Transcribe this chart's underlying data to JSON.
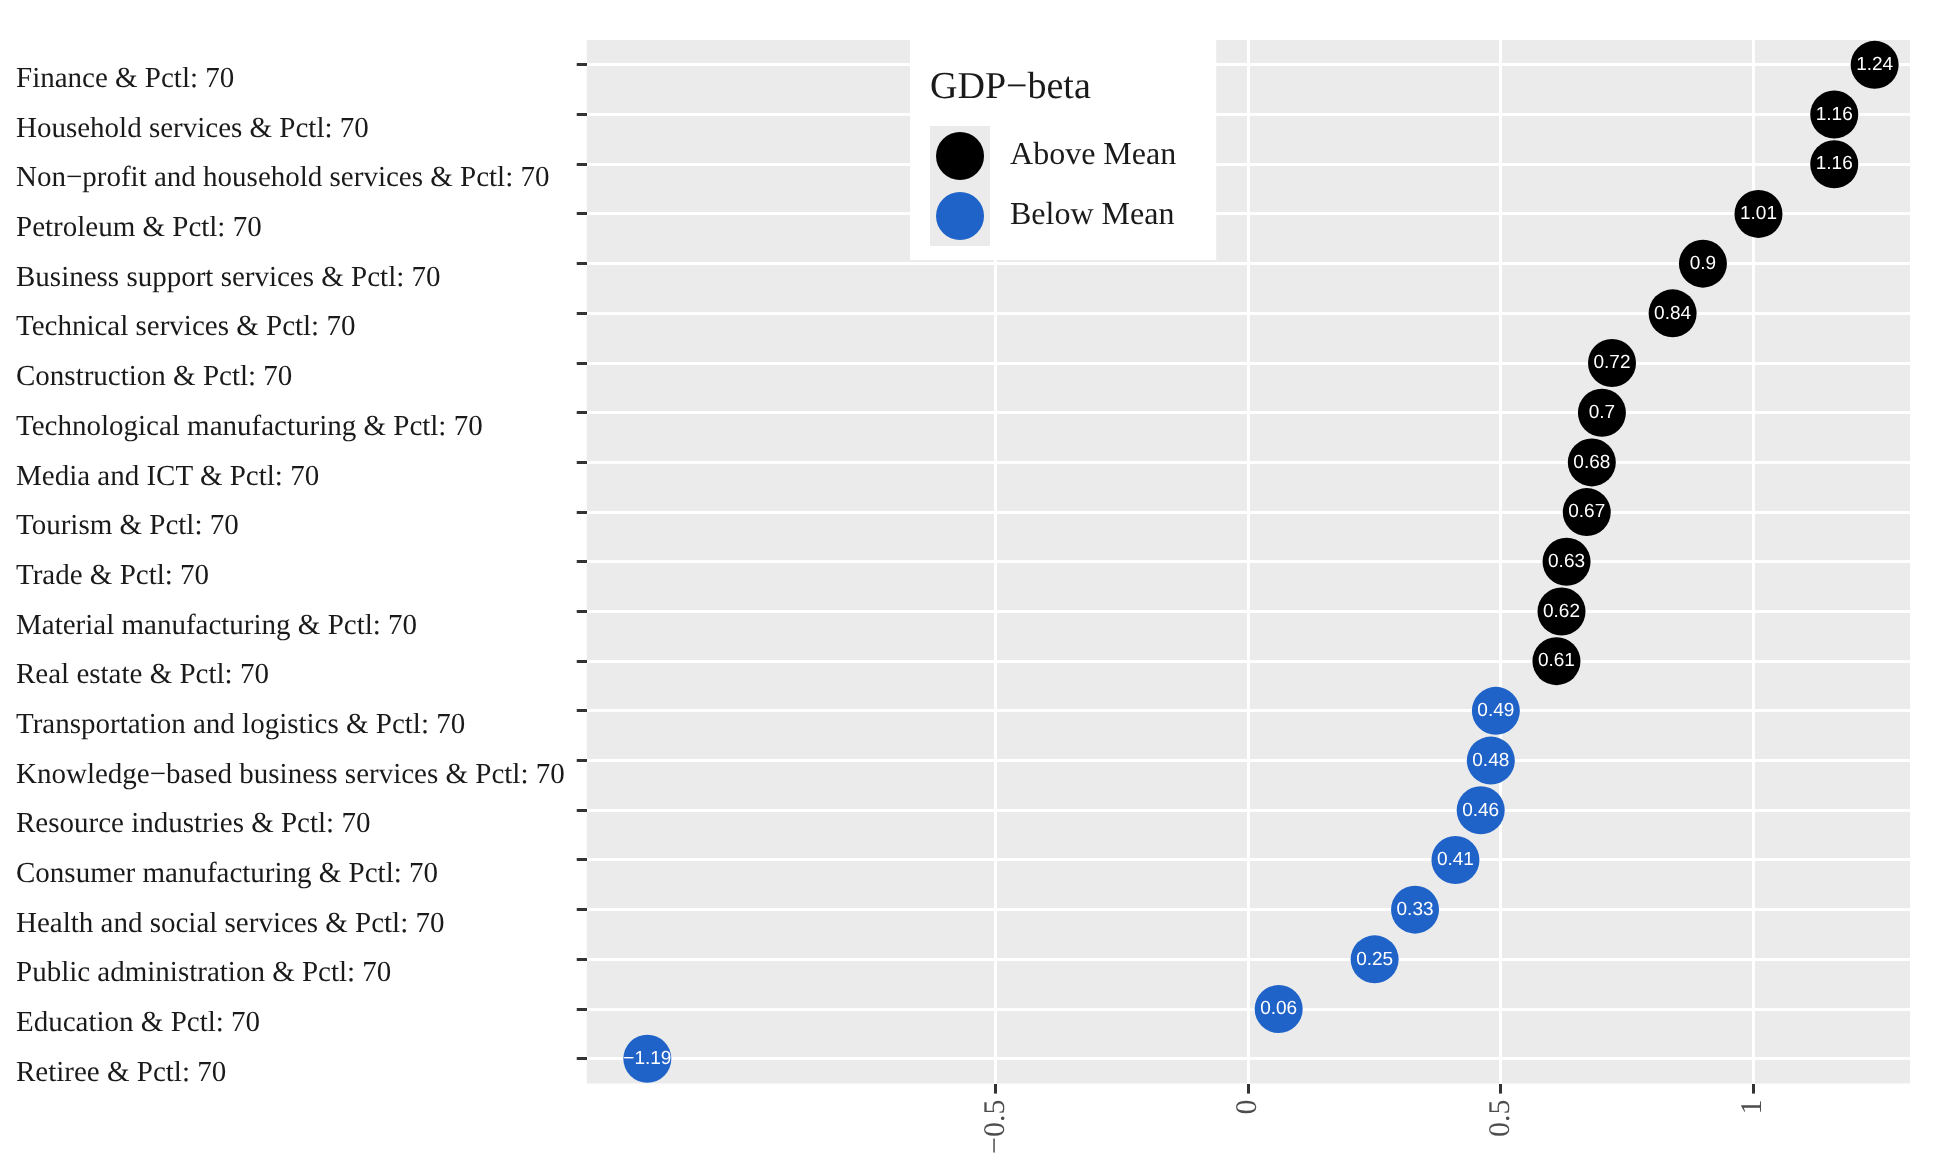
{
  "chart_data": {
    "type": "scatter",
    "legend_title": "GDP−beta",
    "categories": [
      "Finance & Pctl: 70",
      "Household services & Pctl: 70",
      "Non−profit and household services & Pctl: 70",
      "Petroleum & Pctl: 70",
      "Business support services & Pctl: 70",
      "Technical services & Pctl: 70",
      "Construction & Pctl: 70",
      "Technological manufacturing & Pctl: 70",
      "Media and ICT & Pctl: 70",
      "Tourism & Pctl: 70",
      "Trade & Pctl: 70",
      "Material manufacturing & Pctl: 70",
      "Real estate & Pctl: 70",
      "Transportation and logistics & Pctl: 70",
      "Knowledge−based business services & Pctl: 70",
      "Resource industries & Pctl: 70",
      "Consumer manufacturing & Pctl: 70",
      "Health and social services & Pctl: 70",
      "Public administration & Pctl: 70",
      "Education & Pctl: 70",
      "Retiree & Pctl: 70"
    ],
    "series": [
      {
        "name": "Above Mean",
        "color": "#000000",
        "values": [
          1.24,
          1.16,
          1.16,
          1.01,
          0.9,
          0.84,
          0.72,
          0.7,
          0.68,
          0.67,
          0.63,
          0.62,
          0.61,
          null,
          null,
          null,
          null,
          null,
          null,
          null,
          null
        ]
      },
      {
        "name": "Below Mean",
        "color": "#1f63c9",
        "values": [
          null,
          null,
          null,
          null,
          null,
          null,
          null,
          null,
          null,
          null,
          null,
          null,
          null,
          0.49,
          0.48,
          0.46,
          0.41,
          0.33,
          0.25,
          0.06,
          -1.19
        ]
      }
    ],
    "orientation": "horizontal",
    "xlim": [
      -1.31,
      1.31
    ],
    "xticks": [
      -0.5,
      0,
      0.5,
      1
    ],
    "grid": true,
    "legend": "top",
    "marker": "circle",
    "data_labels": true
  }
}
